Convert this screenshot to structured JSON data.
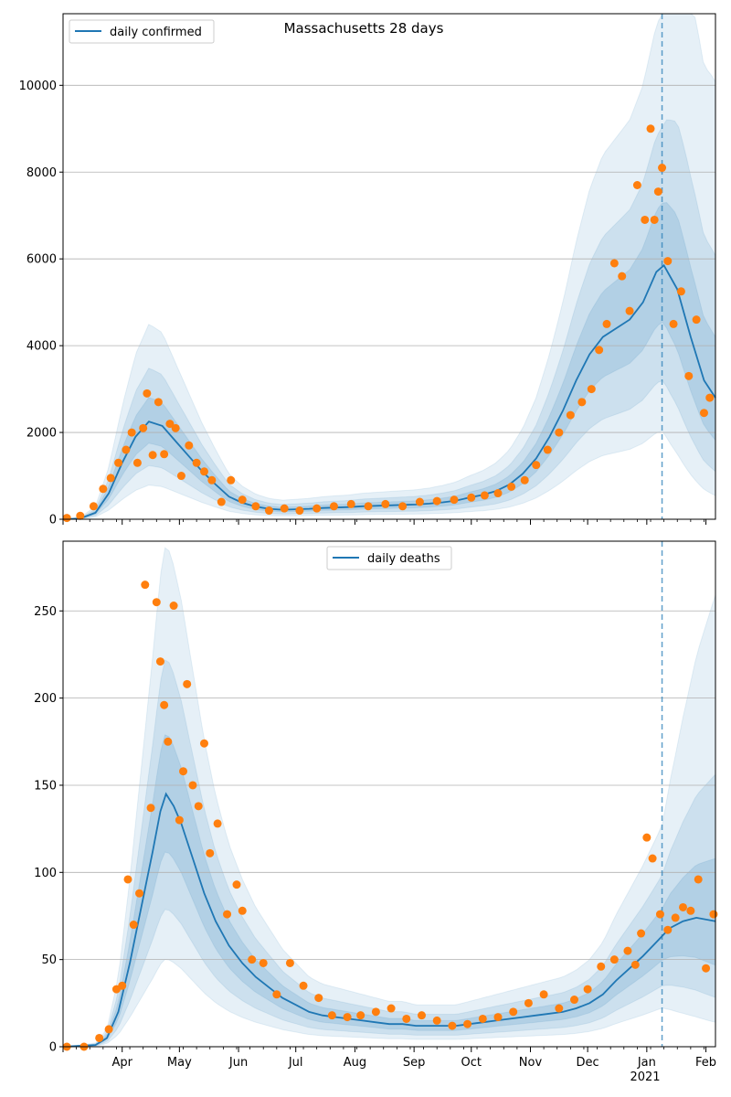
{
  "figure": {
    "title": "Massachusetts 28 days"
  },
  "chart_data": [
    {
      "type": "line",
      "title": "Massachusetts 28 days",
      "xlabel": "",
      "ylabel": "",
      "xlim": [
        "2020-03-01",
        "2021-02-06"
      ],
      "ylim": [
        0,
        11650
      ],
      "grid": "horizontal",
      "legend_position": "top-left",
      "vline": "2021-01-09",
      "yticks": [
        0,
        2000,
        4000,
        6000,
        8000,
        10000
      ],
      "ytick_labels": [
        "0",
        "2000",
        "4000",
        "6000",
        "8000",
        "10000"
      ],
      "series": [
        {
          "name": "daily confirmed",
          "kind": "line",
          "color": "#1f77b4",
          "x": [
            "2020-03-01",
            "2020-03-10",
            "2020-03-18",
            "2020-03-25",
            "2020-04-01",
            "2020-04-08",
            "2020-04-15",
            "2020-04-22",
            "2020-04-29",
            "2020-05-06",
            "2020-05-13",
            "2020-05-20",
            "2020-05-27",
            "2020-06-03",
            "2020-06-10",
            "2020-06-17",
            "2020-06-24",
            "2020-07-01",
            "2020-07-08",
            "2020-07-15",
            "2020-07-22",
            "2020-07-29",
            "2020-08-05",
            "2020-08-12",
            "2020-08-19",
            "2020-08-26",
            "2020-09-02",
            "2020-09-09",
            "2020-09-16",
            "2020-09-23",
            "2020-09-30",
            "2020-10-07",
            "2020-10-14",
            "2020-10-21",
            "2020-10-28",
            "2020-11-04",
            "2020-11-11",
            "2020-11-18",
            "2020-11-25",
            "2020-12-02",
            "2020-12-09",
            "2020-12-16",
            "2020-12-23",
            "2020-12-30",
            "2021-01-06",
            "2021-01-10",
            "2021-01-17",
            "2021-01-24",
            "2021-01-31",
            "2021-02-06"
          ],
          "y": [
            0,
            20,
            150,
            600,
            1300,
            1900,
            2250,
            2150,
            1800,
            1450,
            1100,
            800,
            520,
            380,
            290,
            240,
            220,
            230,
            240,
            260,
            270,
            280,
            300,
            310,
            320,
            330,
            340,
            360,
            390,
            430,
            500,
            560,
            650,
            800,
            1050,
            1400,
            1900,
            2500,
            3200,
            3800,
            4200,
            4400,
            4600,
            5000,
            5700,
            5850,
            5300,
            4200,
            3200,
            2800
          ]
        },
        {
          "name": "observed",
          "kind": "scatter",
          "color": "#ff7f0e",
          "x": [
            "2020-03-03",
            "2020-03-10",
            "2020-03-17",
            "2020-03-22",
            "2020-03-26",
            "2020-03-30",
            "2020-04-03",
            "2020-04-06",
            "2020-04-09",
            "2020-04-12",
            "2020-04-14",
            "2020-04-17",
            "2020-04-20",
            "2020-04-23",
            "2020-04-26",
            "2020-04-29",
            "2020-05-02",
            "2020-05-06",
            "2020-05-10",
            "2020-05-14",
            "2020-05-18",
            "2020-05-23",
            "2020-05-28",
            "2020-06-03",
            "2020-06-10",
            "2020-06-17",
            "2020-06-25",
            "2020-07-03",
            "2020-07-12",
            "2020-07-21",
            "2020-07-30",
            "2020-08-08",
            "2020-08-17",
            "2020-08-26",
            "2020-09-04",
            "2020-09-13",
            "2020-09-22",
            "2020-10-01",
            "2020-10-08",
            "2020-10-15",
            "2020-10-22",
            "2020-10-29",
            "2020-11-04",
            "2020-11-10",
            "2020-11-16",
            "2020-11-22",
            "2020-11-28",
            "2020-12-03",
            "2020-12-07",
            "2020-12-11",
            "2020-12-15",
            "2020-12-19",
            "2020-12-23",
            "2020-12-27",
            "2020-12-31",
            "2021-01-03",
            "2021-01-05",
            "2021-01-07",
            "2021-01-09",
            "2021-01-12",
            "2021-01-15",
            "2021-01-19",
            "2021-01-23",
            "2021-01-27",
            "2021-01-31",
            "2021-02-03"
          ],
          "y": [
            30,
            80,
            300,
            700,
            950,
            1300,
            1600,
            2000,
            1300,
            2100,
            2900,
            1480,
            2700,
            1500,
            2200,
            2100,
            1000,
            1700,
            1300,
            1100,
            900,
            400,
            900,
            450,
            300,
            200,
            250,
            200,
            250,
            300,
            350,
            300,
            350,
            300,
            400,
            420,
            450,
            500,
            550,
            600,
            750,
            900,
            1250,
            1600,
            2000,
            2400,
            2700,
            3000,
            3900,
            4500,
            5900,
            5600,
            4800,
            7700,
            6900,
            9000,
            6900,
            7550,
            8100,
            5950,
            4500,
            5250,
            3300,
            4600,
            2450,
            2800
          ]
        }
      ]
    },
    {
      "type": "line",
      "title": "",
      "xlabel": "",
      "ylabel": "",
      "xlim": [
        "2020-03-01",
        "2021-02-06"
      ],
      "ylim": [
        0,
        290
      ],
      "grid": "horizontal",
      "legend_position": "top-center",
      "vline": "2021-01-09",
      "yticks": [
        0,
        50,
        100,
        150,
        200,
        250
      ],
      "ytick_labels": [
        "0",
        "50",
        "100",
        "150",
        "200",
        "250"
      ],
      "xtick_labels": [
        "Apr",
        "May",
        "Jun",
        "Jul",
        "Aug",
        "Sep",
        "Oct",
        "Nov",
        "Dec",
        "Jan",
        "Feb"
      ],
      "xtick_year_label": "2021",
      "series": [
        {
          "name": "daily deaths",
          "kind": "line",
          "color": "#1f77b4",
          "x": [
            "2020-03-01",
            "2020-03-18",
            "2020-03-24",
            "2020-03-30",
            "2020-04-05",
            "2020-04-11",
            "2020-04-17",
            "2020-04-21",
            "2020-04-24",
            "2020-04-28",
            "2020-05-02",
            "2020-05-08",
            "2020-05-14",
            "2020-05-20",
            "2020-05-27",
            "2020-06-03",
            "2020-06-10",
            "2020-06-17",
            "2020-06-24",
            "2020-07-01",
            "2020-07-08",
            "2020-07-15",
            "2020-07-22",
            "2020-07-29",
            "2020-08-05",
            "2020-08-12",
            "2020-08-19",
            "2020-08-26",
            "2020-09-02",
            "2020-09-09",
            "2020-09-16",
            "2020-09-23",
            "2020-09-30",
            "2020-10-07",
            "2020-10-14",
            "2020-10-21",
            "2020-10-28",
            "2020-11-04",
            "2020-11-11",
            "2020-11-18",
            "2020-11-25",
            "2020-12-02",
            "2020-12-09",
            "2020-12-16",
            "2020-12-23",
            "2020-12-30",
            "2021-01-06",
            "2021-01-13",
            "2021-01-20",
            "2021-01-27",
            "2021-02-06"
          ],
          "y": [
            0,
            1,
            5,
            20,
            48,
            80,
            112,
            135,
            145,
            138,
            128,
            108,
            88,
            72,
            58,
            48,
            40,
            34,
            28,
            24,
            20,
            18,
            17,
            16,
            15,
            14,
            13,
            13,
            12,
            12,
            12,
            12,
            13,
            14,
            15,
            16,
            17,
            18,
            19,
            20,
            22,
            25,
            30,
            38,
            45,
            52,
            60,
            68,
            72,
            74,
            72
          ]
        },
        {
          "name": "observed",
          "kind": "scatter",
          "color": "#ff7f0e",
          "x": [
            "2020-03-03",
            "2020-03-12",
            "2020-03-20",
            "2020-03-25",
            "2020-03-29",
            "2020-04-01",
            "2020-04-04",
            "2020-04-07",
            "2020-04-10",
            "2020-04-13",
            "2020-04-16",
            "2020-04-19",
            "2020-04-21",
            "2020-04-23",
            "2020-04-25",
            "2020-04-28",
            "2020-05-01",
            "2020-05-03",
            "2020-05-05",
            "2020-05-08",
            "2020-05-11",
            "2020-05-14",
            "2020-05-17",
            "2020-05-21",
            "2020-05-26",
            "2020-05-31",
            "2020-06-03",
            "2020-06-08",
            "2020-06-14",
            "2020-06-21",
            "2020-06-28",
            "2020-07-05",
            "2020-07-13",
            "2020-07-20",
            "2020-07-28",
            "2020-08-04",
            "2020-08-12",
            "2020-08-20",
            "2020-08-28",
            "2020-09-05",
            "2020-09-13",
            "2020-09-21",
            "2020-09-29",
            "2020-10-07",
            "2020-10-15",
            "2020-10-23",
            "2020-10-31",
            "2020-11-08",
            "2020-11-16",
            "2020-11-24",
            "2020-12-01",
            "2020-12-08",
            "2020-12-15",
            "2020-12-22",
            "2020-12-26",
            "2020-12-29",
            "2021-01-01",
            "2021-01-04",
            "2021-01-08",
            "2021-01-12",
            "2021-01-16",
            "2021-01-20",
            "2021-01-24",
            "2021-01-28",
            "2021-02-01",
            "2021-02-05"
          ],
          "y": [
            0,
            0,
            5,
            10,
            33,
            35,
            96,
            70,
            88,
            265,
            137,
            255,
            221,
            196,
            175,
            253,
            130,
            158,
            208,
            150,
            138,
            174,
            111,
            128,
            76,
            93,
            78,
            50,
            48,
            30,
            48,
            35,
            28,
            18,
            17,
            18,
            20,
            22,
            16,
            18,
            15,
            12,
            13,
            16,
            17,
            20,
            25,
            30,
            22,
            27,
            33,
            46,
            50,
            55,
            47,
            65,
            120,
            108,
            76,
            67,
            74,
            80,
            78,
            96,
            45,
            76
          ]
        }
      ]
    }
  ]
}
